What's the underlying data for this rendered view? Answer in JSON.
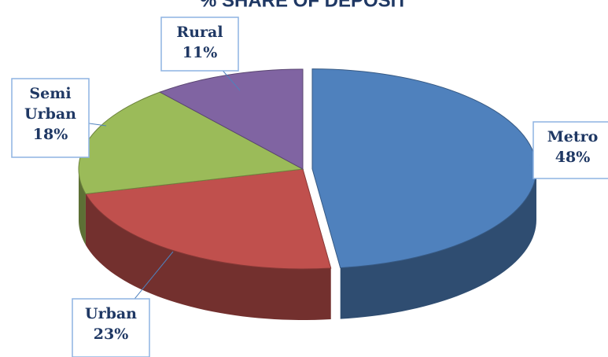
{
  "chart_data": {
    "type": "pie",
    "title": "% SHARE OF DEPOSIT",
    "categories": [
      "Metro",
      "Urban",
      "Semi Urban",
      "Rural"
    ],
    "values": [
      48,
      23,
      18,
      11
    ],
    "value_labels": [
      "48%",
      "23%",
      "18%",
      "11%"
    ],
    "colors": [
      "#4f81bd",
      "#c0504d",
      "#9bbb59",
      "#8064a2"
    ]
  }
}
